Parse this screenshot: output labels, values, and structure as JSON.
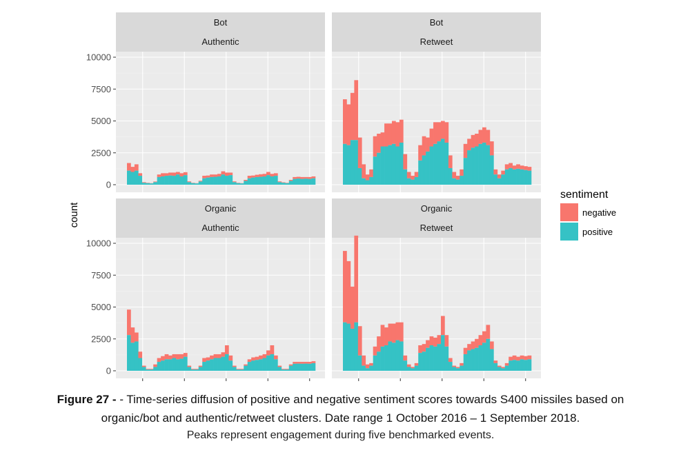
{
  "chart_data": {
    "type": "area",
    "stacked": true,
    "ylabel": "count",
    "xlabel": "",
    "ylim": [
      0,
      11000
    ],
    "yticks": [
      0,
      2500,
      5000,
      7500,
      10000
    ],
    "grid": true,
    "legend": {
      "title": "sentiment",
      "placement": "right",
      "entries": [
        {
          "name": "negative",
          "color": "#F8766D"
        },
        {
          "name": "positive",
          "color": "#35C2C5"
        }
      ]
    },
    "panels": [
      {
        "strip_top": "Bot",
        "strip_bottom": "Authentic",
        "series": [
          {
            "name": "positive",
            "values": [
              1100,
              1000,
              1100,
              700,
              150,
              120,
              100,
              200,
              600,
              650,
              700,
              720,
              700,
              800,
              650,
              750,
              200,
              120,
              100,
              250,
              500,
              560,
              600,
              620,
              650,
              800,
              700,
              750,
              200,
              120,
              100,
              300,
              500,
              560,
              600,
              620,
              650,
              750,
              650,
              700,
              200,
              150,
              120,
              300,
              450,
              480,
              450,
              470,
              450,
              500
            ]
          },
          {
            "name": "negative",
            "values": [
              600,
              400,
              500,
              200,
              50,
              30,
              20,
              50,
              200,
              250,
              200,
              230,
              250,
              200,
              250,
              230,
              60,
              30,
              20,
              60,
              200,
              160,
              200,
              180,
              200,
              250,
              250,
              200,
              60,
              30,
              20,
              80,
              200,
              160,
              180,
              200,
              200,
              250,
              200,
              200,
              60,
              40,
              30,
              80,
              150,
              140,
              150,
              130,
              150,
              150
            ]
          }
        ]
      },
      {
        "strip_top": "Bot",
        "strip_bottom": "Retweet",
        "series": [
          {
            "name": "positive",
            "values": [
              3200,
              3100,
              3500,
              3500,
              1300,
              500,
              350,
              600,
              2200,
              2500,
              3000,
              3000,
              3100,
              3200,
              3000,
              3300,
              1200,
              500,
              400,
              600,
              1900,
              2300,
              2600,
              3000,
              3200,
              3400,
              3600,
              3300,
              1300,
              500,
              400,
              700,
              2100,
              2700,
              2900,
              3000,
              3200,
              3300,
              3100,
              2300,
              800,
              500,
              800,
              1200,
              1300,
              1200,
              1250,
              1200,
              1150,
              1100
            ]
          },
          {
            "name": "negative",
            "values": [
              3500,
              3200,
              3700,
              4700,
              2400,
              1100,
              450,
              600,
              1600,
              1500,
              1100,
              1800,
              1700,
              1800,
              1900,
              1800,
              1200,
              500,
              300,
              400,
              1200,
              1500,
              1100,
              1400,
              1700,
              1500,
              1400,
              1600,
              1000,
              500,
              300,
              500,
              1100,
              900,
              1000,
              1000,
              1100,
              1200,
              1200,
              1100,
              400,
              300,
              300,
              400,
              400,
              300,
              350,
              300,
              300,
              300
            ]
          }
        ]
      },
      {
        "strip_top": "Organic",
        "strip_bottom": "Authentic",
        "series": [
          {
            "name": "positive",
            "values": [
              2800,
              2200,
              2300,
              1000,
              300,
              100,
              100,
              300,
              700,
              800,
              900,
              900,
              1000,
              900,
              950,
              1100,
              300,
              100,
              100,
              300,
              700,
              800,
              900,
              1000,
              1000,
              1100,
              1300,
              800,
              300,
              100,
              100,
              400,
              700,
              800,
              850,
              900,
              1000,
              1200,
              1300,
              900,
              300,
              100,
              100,
              400,
              550,
              560,
              550,
              560,
              550,
              600
            ]
          },
          {
            "name": "negative",
            "values": [
              2000,
              1200,
              700,
              500,
              100,
              50,
              50,
              200,
              300,
              350,
              400,
              300,
              300,
              400,
              350,
              300,
              100,
              50,
              50,
              100,
              300,
              250,
              300,
              300,
              300,
              350,
              700,
              400,
              100,
              50,
              50,
              100,
              200,
              250,
              250,
              300,
              300,
              400,
              700,
              300,
              100,
              50,
              50,
              100,
              150,
              140,
              150,
              140,
              150,
              150
            ]
          }
        ]
      },
      {
        "strip_top": "Organic",
        "strip_bottom": "Retweet",
        "series": [
          {
            "name": "positive",
            "values": [
              3800,
              3700,
              3300,
              3800,
              1200,
              400,
              200,
              400,
              1200,
              1500,
              1900,
              2000,
              2300,
              2200,
              2400,
              2300,
              800,
              300,
              200,
              400,
              1400,
              1500,
              1800,
              2000,
              1900,
              2100,
              2800,
              1900,
              700,
              300,
              200,
              400,
              1300,
              1600,
              1700,
              1800,
              2000,
              2200,
              2500,
              1700,
              600,
              300,
              200,
              400,
              800,
              850,
              800,
              900,
              850,
              900
            ]
          },
          {
            "name": "negative",
            "values": [
              5600,
              4900,
              3300,
              6800,
              2300,
              800,
              300,
              200,
              700,
              1200,
              1700,
              1400,
              1400,
              1500,
              1400,
              1500,
              400,
              200,
              100,
              200,
              600,
              600,
              600,
              700,
              700,
              700,
              1500,
              900,
              300,
              100,
              100,
              200,
              500,
              500,
              600,
              700,
              800,
              900,
              1100,
              600,
              200,
              100,
              100,
              200,
              300,
              350,
              300,
              300,
              300,
              300
            ]
          }
        ]
      }
    ]
  },
  "caption": {
    "label": "Figure 27 -",
    "line1": "- Time-series diffusion of positive and negative sentiment scores towards S400 missiles based on",
    "line2": "organic/bot and authentic/retweet clusters. Date range 1 October 2016 – 1 September 2018.",
    "line3": "Peaks represent engagement during five benchmarked events."
  }
}
